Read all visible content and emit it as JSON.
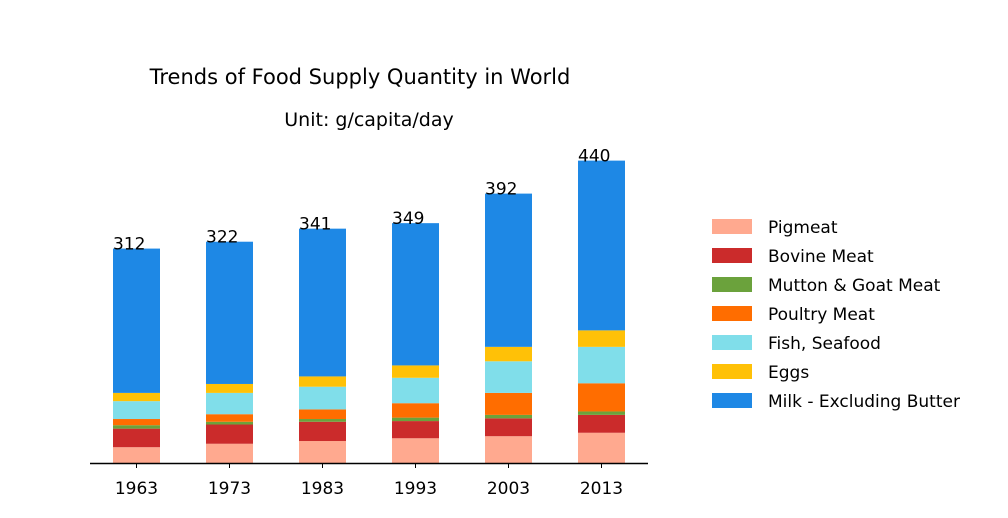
{
  "chart_data": {
    "type": "bar",
    "stacked": true,
    "title": "Trends of Food Supply Quantity in World",
    "subtitle": "Unit: g/capita/day",
    "categories": [
      "1963",
      "1973",
      "1983",
      "1993",
      "2003",
      "2013"
    ],
    "totals": [
      312,
      322,
      341,
      349,
      392,
      440
    ],
    "ylim": [
      0,
      470
    ],
    "legend_position": "right",
    "grid": false,
    "series": [
      {
        "name": "Pigmeat",
        "color": "#FFA98F",
        "values": [
          23,
          28,
          32,
          36,
          39,
          44
        ]
      },
      {
        "name": "Bovine Meat",
        "color": "#CB2B2B",
        "values": [
          27,
          28,
          28,
          25,
          26,
          26
        ]
      },
      {
        "name": "Mutton & Goat Meat",
        "color": "#6BA23C",
        "values": [
          5,
          4,
          4,
          5,
          5,
          5
        ]
      },
      {
        "name": "Poultry Meat",
        "color": "#FF6D00",
        "values": [
          9,
          11,
          14,
          21,
          32,
          41
        ]
      },
      {
        "name": "Fish, Seafood",
        "color": "#80DEEA",
        "values": [
          26,
          31,
          33,
          37,
          46,
          53
        ]
      },
      {
        "name": "Eggs",
        "color": "#FFC107",
        "values": [
          12,
          13,
          15,
          18,
          21,
          24
        ]
      },
      {
        "name": "Milk - Excluding Butter",
        "color": "#1E88E5",
        "values": [
          210,
          207,
          215,
          207,
          223,
          247
        ]
      }
    ]
  }
}
